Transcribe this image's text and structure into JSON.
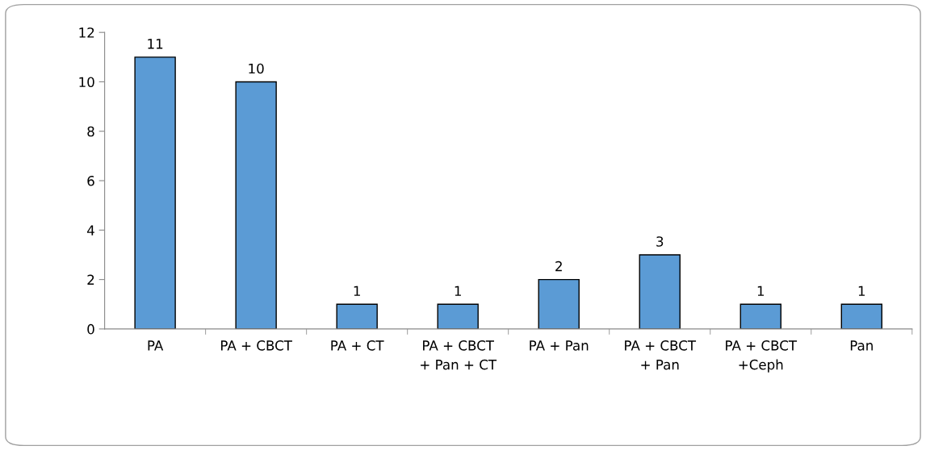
{
  "chart_data": {
    "type": "bar",
    "categories": [
      "PA",
      "PA + CBCT",
      "PA + CT",
      "PA + CBCT\n+ Pan + CT",
      "PA + Pan",
      "PA + CBCT\n+ Pan",
      "PA + CBCT\n+Ceph",
      "Pan"
    ],
    "values": [
      11,
      10,
      1,
      1,
      2,
      3,
      1,
      1
    ],
    "color": "#5b9bd5",
    "ylim": [
      0,
      12
    ],
    "yticks": [
      0,
      2,
      4,
      6,
      8,
      10,
      12
    ],
    "data_labels": true,
    "grid": false
  }
}
